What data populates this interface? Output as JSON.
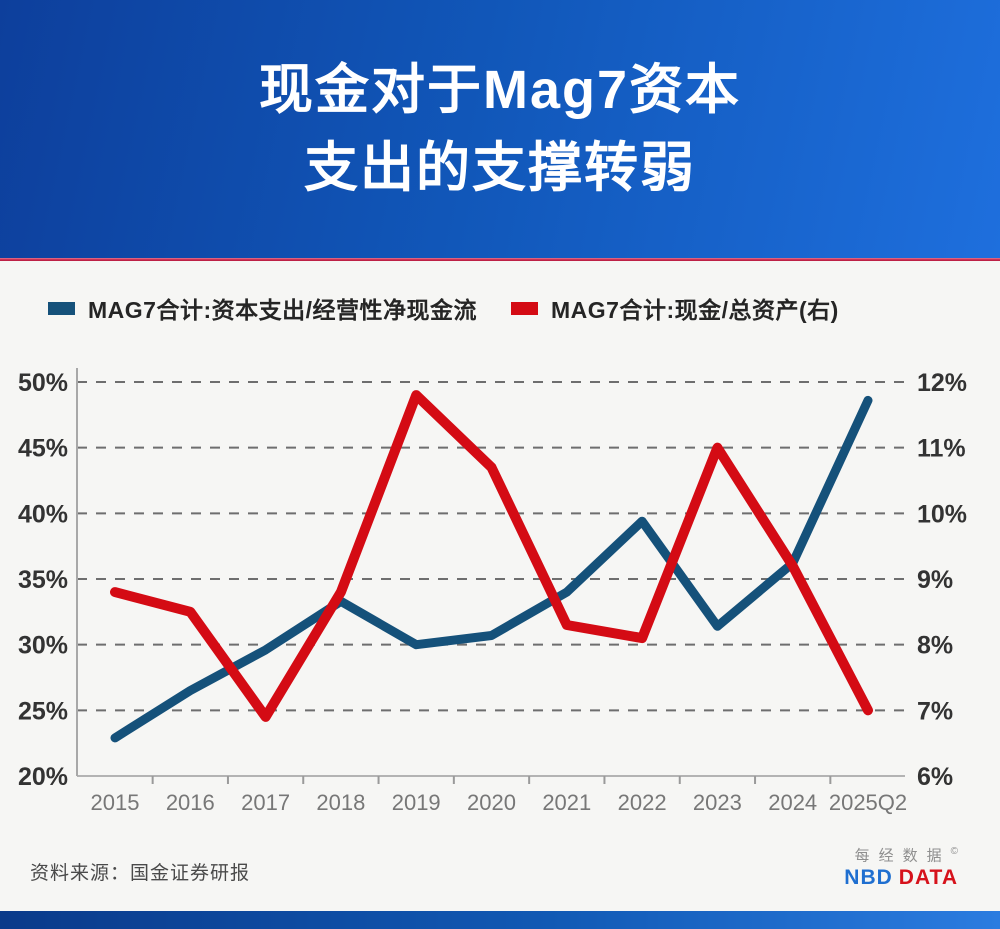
{
  "header": {
    "title_line1": "现金对于Mag7资本",
    "title_line2": "支出的支撑转弱"
  },
  "legend": [
    {
      "label": "MAG7合计:资本支出/经营性净现金流",
      "color": "#15517a"
    },
    {
      "label": "MAG7合计:现金/总资产(右)",
      "color": "#d40b14"
    }
  ],
  "chart_data": {
    "type": "line",
    "categories": [
      "2015",
      "2016",
      "2017",
      "2018",
      "2019",
      "2020",
      "2021",
      "2022",
      "2023",
      "2024",
      "2025Q2"
    ],
    "series": [
      {
        "name": "MAG7合计:资本支出/经营性净现金流",
        "axis": "left",
        "color": "#15517a",
        "stroke_width": 9,
        "values": [
          22.9,
          26.5,
          29.6,
          33.3,
          30.0,
          30.7,
          34.0,
          39.4,
          31.4,
          36.2,
          48.6
        ]
      },
      {
        "name": "MAG7合计:现金/总资产(右)",
        "axis": "right",
        "color": "#d40b14",
        "stroke_width": 10,
        "values": [
          8.8,
          8.5,
          6.9,
          8.8,
          11.8,
          10.7,
          8.3,
          8.1,
          11.0,
          9.2,
          7.0
        ]
      }
    ],
    "left_axis": {
      "min": 20,
      "max": 50,
      "step": 5,
      "tick_labels": [
        "50%",
        "45%",
        "40%",
        "35%",
        "30%",
        "25%",
        "20%"
      ]
    },
    "right_axis": {
      "min": 6,
      "max": 12,
      "step": 1,
      "tick_labels": [
        "12%",
        "11%",
        "10%",
        "9%",
        "8%",
        "7%",
        "6%"
      ]
    },
    "grid": "horizontal-dashed",
    "legend_position": "top"
  },
  "footer": {
    "source": "资料来源：国金证券研报",
    "logo_cn": "每经数据",
    "logo_copyright": "©",
    "logo_nbd": "NBD",
    "logo_data": "DATA"
  },
  "colors": {
    "header_gradient_start": "#0d3f9c",
    "header_gradient_end": "#1e6fdd",
    "divider_red": "#c9234a",
    "body_bg": "#f6f6f4",
    "blue_line": "#15517a",
    "red_line": "#d40b14",
    "axis_label": "#333333",
    "x_label": "#777777"
  }
}
